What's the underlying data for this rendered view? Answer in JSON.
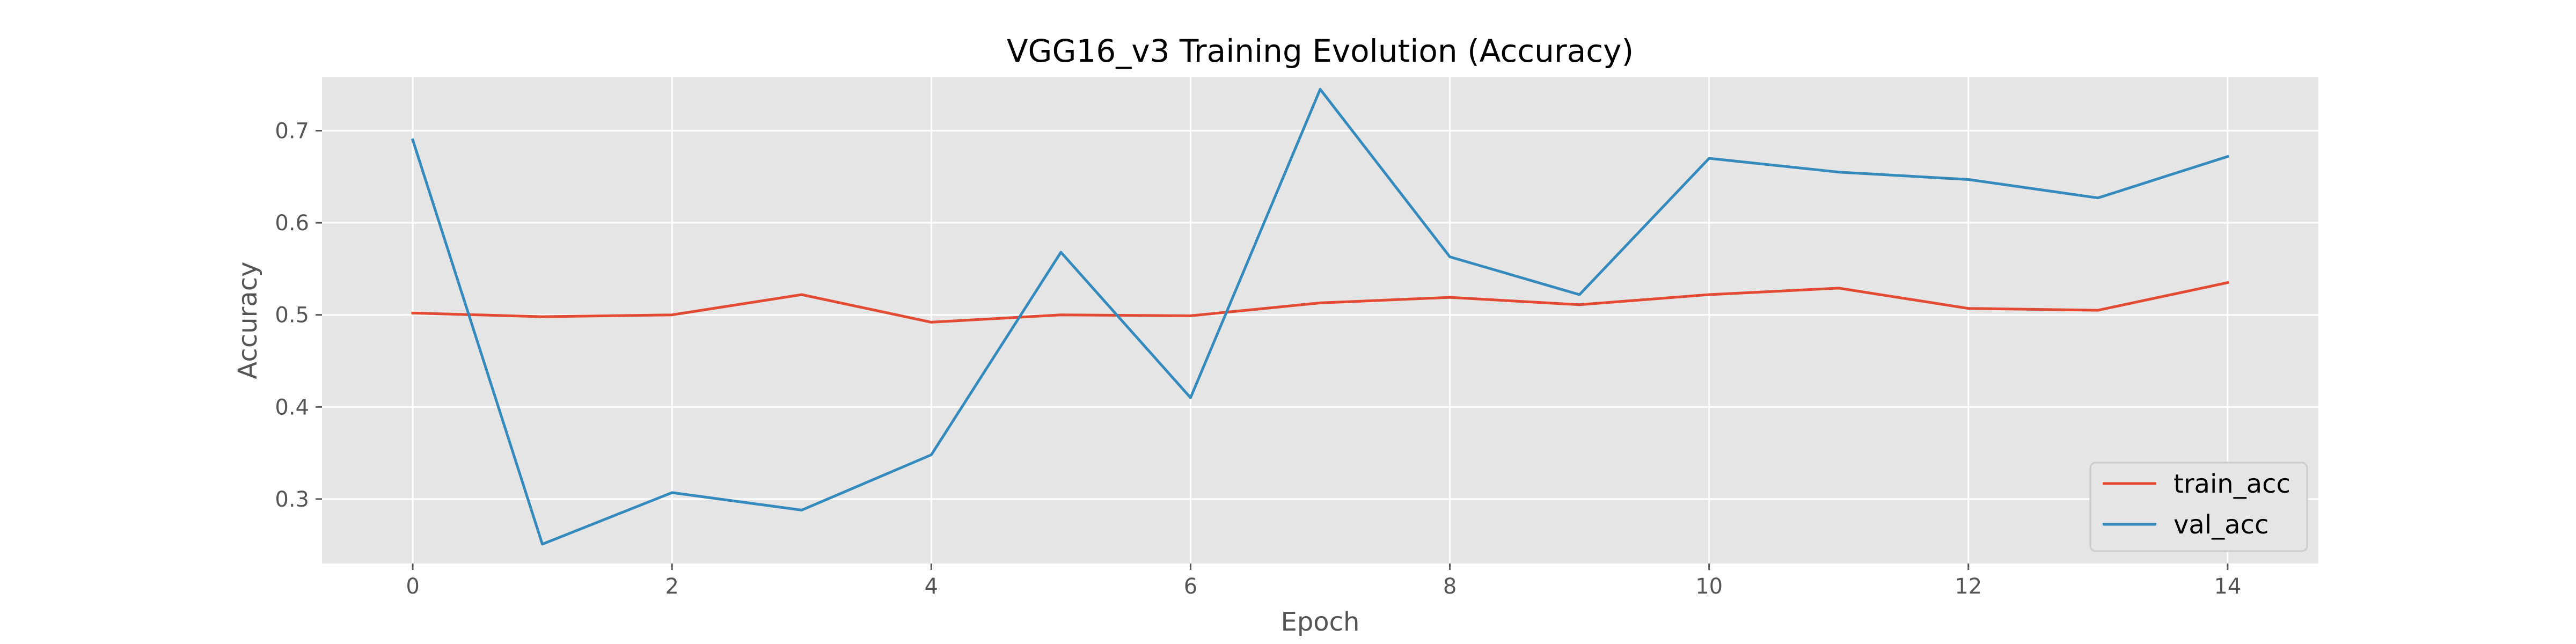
{
  "chart_data": {
    "type": "line",
    "title": "VGG16_v3 Training Evolution (Accuracy)",
    "xlabel": "Epoch",
    "ylabel": "Accuracy",
    "x": [
      0,
      1,
      2,
      3,
      4,
      5,
      6,
      7,
      8,
      9,
      10,
      11,
      12,
      13,
      14
    ],
    "xlim": [
      -0.7,
      14.7
    ],
    "ylim": [
      0.23,
      0.758
    ],
    "x_ticks": [
      0,
      2,
      4,
      6,
      8,
      10,
      12,
      14
    ],
    "y_ticks": [
      0.3,
      0.4,
      0.5,
      0.6,
      0.7
    ],
    "x_tick_labels": [
      "0",
      "2",
      "4",
      "6",
      "8",
      "10",
      "12",
      "14"
    ],
    "y_tick_labels": [
      "0.3",
      "0.4",
      "0.5",
      "0.6",
      "0.7"
    ],
    "grid": true,
    "legend_position": "lower right",
    "series": [
      {
        "name": "train_acc",
        "color": "#E24A33",
        "values": [
          0.502,
          0.498,
          0.5,
          0.522,
          0.492,
          0.5,
          0.499,
          0.513,
          0.519,
          0.511,
          0.522,
          0.529,
          0.507,
          0.505,
          0.535
        ]
      },
      {
        "name": "val_acc",
        "color": "#348ABD",
        "values": [
          0.69,
          0.251,
          0.307,
          0.288,
          0.348,
          0.568,
          0.41,
          0.745,
          0.563,
          0.522,
          0.67,
          0.655,
          0.647,
          0.627,
          0.672
        ]
      }
    ]
  }
}
